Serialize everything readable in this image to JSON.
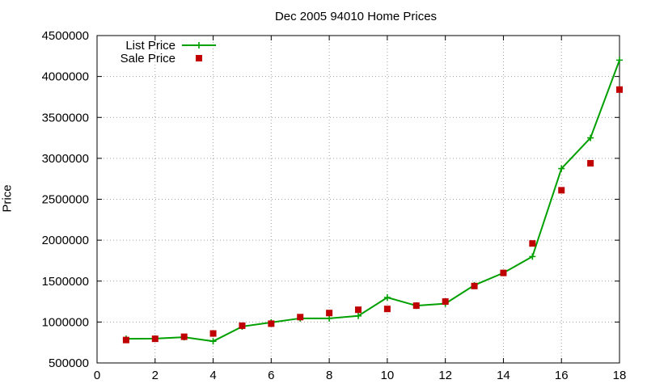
{
  "chart_data": {
    "type": "line",
    "title": "Dec 2005 94010 Home Prices",
    "xlabel": "",
    "ylabel": "Price",
    "xlim": [
      0,
      18
    ],
    "ylim": [
      500000,
      4500000
    ],
    "x_ticks": [
      0,
      2,
      4,
      6,
      8,
      10,
      12,
      14,
      16,
      18
    ],
    "y_ticks": [
      500000,
      1000000,
      1500000,
      2000000,
      2500000,
      3000000,
      3500000,
      4000000,
      4500000
    ],
    "x_tick_labels": [
      "0",
      "2",
      "4",
      "6",
      "8",
      "10",
      "12",
      "14",
      "16",
      "18"
    ],
    "y_tick_labels": [
      "500000",
      "1000000",
      "1500000",
      "2000000",
      "2500000",
      "3000000",
      "3500000",
      "4000000",
      "4500000"
    ],
    "grid": true,
    "legend_position": "top-left",
    "series": [
      {
        "name": "List Price",
        "style": "line-with-plus-markers",
        "color": "#00a000",
        "x": [
          1,
          2,
          3,
          4,
          5,
          6,
          7,
          8,
          9,
          10,
          11,
          12,
          13,
          14,
          15,
          16,
          17,
          18
        ],
        "y": [
          795000,
          798000,
          815000,
          765000,
          945000,
          995000,
          1045000,
          1045000,
          1075000,
          1300000,
          1200000,
          1225000,
          1450000,
          1600000,
          1800000,
          2875000,
          3250000,
          4200000
        ]
      },
      {
        "name": "Sale Price",
        "style": "square-markers",
        "color": "#c00000",
        "x": [
          1,
          2,
          3,
          4,
          5,
          6,
          7,
          8,
          9,
          10,
          11,
          12,
          13,
          14,
          15,
          16,
          17,
          18
        ],
        "y": [
          780000,
          795000,
          820000,
          860000,
          955000,
          980000,
          1060000,
          1110000,
          1150000,
          1160000,
          1200000,
          1250000,
          1440000,
          1600000,
          1960000,
          2610000,
          2940000,
          3840000
        ]
      }
    ]
  }
}
